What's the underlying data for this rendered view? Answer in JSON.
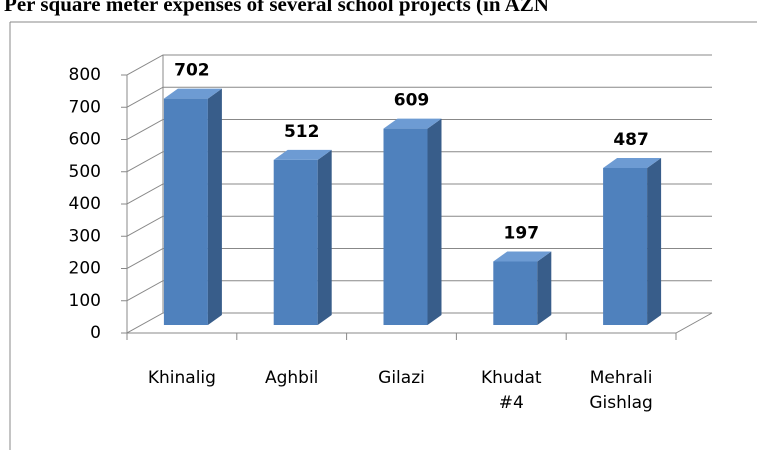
{
  "chart_data": {
    "type": "bar3d",
    "title": "Per square meter expenses of several school projects (in AZN",
    "categories": [
      "Khinalig",
      "Aghbil",
      "Gilazi",
      "Khudat #4",
      "Mehrali Gishlag"
    ],
    "values": [
      702,
      512,
      609,
      197,
      487
    ],
    "color": "#4f81bd",
    "ylim": [
      0,
      800
    ],
    "yticks": [
      0,
      100,
      200,
      300,
      400,
      500,
      600,
      700,
      800
    ],
    "grid": true
  }
}
